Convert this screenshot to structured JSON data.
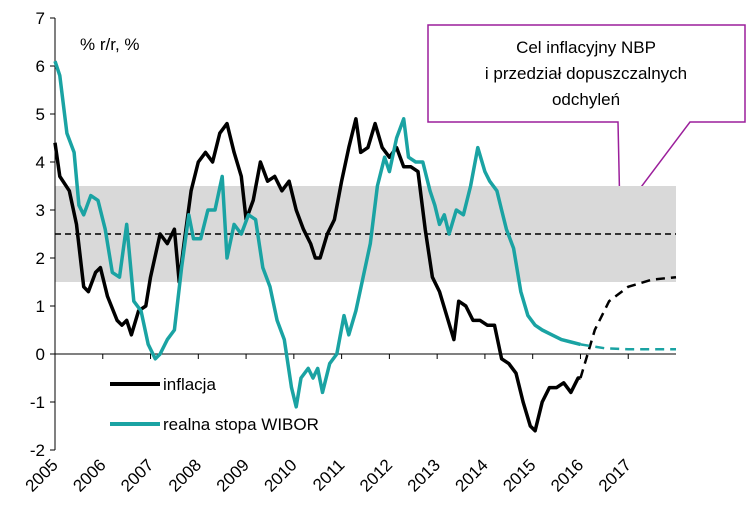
{
  "chart_data": {
    "type": "line",
    "ylabel": "% r/r, %",
    "annotation": [
      "Cel inflacyjny NBP",
      "i przedział dopuszczalnych",
      "odchyleń"
    ],
    "xlim": [
      2005,
      2018
    ],
    "xticks": [
      2005,
      2006,
      2007,
      2008,
      2009,
      2010,
      2011,
      2012,
      2013,
      2014,
      2015,
      2016,
      2017
    ],
    "ylim": [
      -2,
      7
    ],
    "yticks": [
      -2,
      -1,
      0,
      1,
      2,
      3,
      4,
      5,
      6,
      7
    ],
    "target": 2.5,
    "band": [
      1.5,
      3.5
    ],
    "band_color": "#d9d9d9",
    "series": [
      {
        "name": "inflacja",
        "color": "#000000",
        "x": [
          2005.0,
          2005.1,
          2005.3,
          2005.45,
          2005.6,
          2005.7,
          2005.85,
          2005.95,
          2006.1,
          2006.3,
          2006.4,
          2006.5,
          2006.6,
          2006.75,
          2006.9,
          2007.0,
          2007.2,
          2007.35,
          2007.5,
          2007.6,
          2007.7,
          2007.85,
          2008.0,
          2008.15,
          2008.3,
          2008.45,
          2008.6,
          2008.75,
          2008.9,
          2009.0,
          2009.15,
          2009.3,
          2009.45,
          2009.6,
          2009.75,
          2009.9,
          2010.05,
          2010.2,
          2010.35,
          2010.45,
          2010.55,
          2010.7,
          2010.85,
          2011.0,
          2011.15,
          2011.3,
          2011.4,
          2011.55,
          2011.7,
          2011.85,
          2012.0,
          2012.15,
          2012.3,
          2012.45,
          2012.6,
          2012.75,
          2012.9,
          2013.05,
          2013.2,
          2013.35,
          2013.45,
          2013.6,
          2013.75,
          2013.9,
          2014.05,
          2014.2,
          2014.35,
          2014.5,
          2014.65,
          2014.8,
          2014.95,
          2015.05,
          2015.2,
          2015.35,
          2015.5,
          2015.65,
          2015.8,
          2015.95,
          2016.0
        ],
        "values": [
          4.4,
          3.7,
          3.4,
          2.7,
          1.4,
          1.3,
          1.7,
          1.8,
          1.2,
          0.7,
          0.6,
          0.7,
          0.4,
          0.9,
          1.0,
          1.6,
          2.5,
          2.3,
          2.6,
          1.5,
          2.3,
          3.4,
          4.0,
          4.2,
          4.0,
          4.6,
          4.8,
          4.2,
          3.7,
          2.8,
          3.2,
          4.0,
          3.6,
          3.7,
          3.4,
          3.6,
          3.0,
          2.6,
          2.3,
          2.0,
          2.0,
          2.5,
          2.8,
          3.6,
          4.3,
          4.9,
          4.2,
          4.3,
          4.8,
          4.3,
          4.1,
          4.3,
          3.9,
          3.9,
          3.8,
          2.6,
          1.6,
          1.3,
          0.8,
          0.3,
          1.1,
          1.0,
          0.7,
          0.7,
          0.6,
          0.6,
          -0.1,
          -0.2,
          -0.4,
          -1.0,
          -1.5,
          -1.6,
          -1.0,
          -0.7,
          -0.7,
          -0.6,
          -0.8,
          -0.5,
          -0.5
        ],
        "forecast": {
          "x": [
            2016.0,
            2016.3,
            2016.6,
            2017.0,
            2017.5,
            2018.0
          ],
          "values": [
            -0.5,
            0.5,
            1.1,
            1.4,
            1.55,
            1.6
          ]
        }
      },
      {
        "name": "realna stopa WIBOR",
        "color": "#1aa3a3",
        "x": [
          2005.0,
          2005.1,
          2005.25,
          2005.4,
          2005.5,
          2005.6,
          2005.75,
          2005.9,
          2006.05,
          2006.2,
          2006.35,
          2006.5,
          2006.65,
          2006.8,
          2006.95,
          2007.1,
          2007.2,
          2007.35,
          2007.5,
          2007.65,
          2007.8,
          2007.9,
          2008.05,
          2008.2,
          2008.35,
          2008.5,
          2008.6,
          2008.75,
          2008.9,
          2009.05,
          2009.2,
          2009.35,
          2009.5,
          2009.65,
          2009.8,
          2009.95,
          2010.05,
          2010.15,
          2010.3,
          2010.4,
          2010.5,
          2010.6,
          2010.75,
          2010.9,
          2011.05,
          2011.15,
          2011.3,
          2011.45,
          2011.6,
          2011.75,
          2011.9,
          2012.0,
          2012.15,
          2012.3,
          2012.4,
          2012.55,
          2012.7,
          2012.85,
          2012.95,
          2013.05,
          2013.15,
          2013.25,
          2013.4,
          2013.55,
          2013.7,
          2013.85,
          2014.0,
          2014.1,
          2014.25,
          2014.35,
          2014.45,
          2014.6,
          2014.75,
          2014.9,
          2015.05,
          2015.2,
          2015.4,
          2015.6,
          2015.8,
          2016.0
        ],
        "values": [
          6.1,
          5.8,
          4.6,
          4.2,
          3.1,
          2.9,
          3.3,
          3.2,
          2.6,
          1.7,
          1.6,
          2.7,
          1.1,
          0.9,
          0.2,
          -0.1,
          0.0,
          0.3,
          0.5,
          1.8,
          2.9,
          2.4,
          2.4,
          3.0,
          3.0,
          3.7,
          2.0,
          2.7,
          2.5,
          2.9,
          2.8,
          1.8,
          1.4,
          0.7,
          0.3,
          -0.7,
          -1.1,
          -0.5,
          -0.3,
          -0.5,
          -0.3,
          -0.8,
          -0.2,
          0.0,
          0.8,
          0.4,
          0.9,
          1.6,
          2.3,
          3.5,
          4.1,
          3.8,
          4.5,
          4.9,
          4.1,
          4.0,
          4.0,
          3.4,
          3.1,
          2.7,
          2.9,
          2.5,
          3.0,
          2.9,
          3.5,
          4.3,
          3.8,
          3.6,
          3.4,
          3.0,
          2.6,
          2.2,
          1.3,
          0.8,
          0.6,
          0.5,
          0.4,
          0.3,
          0.25,
          0.2
        ],
        "forecast": {
          "x": [
            2016.0,
            2016.5,
            2017.0,
            2017.5,
            2018.0
          ],
          "values": [
            0.2,
            0.12,
            0.1,
            0.1,
            0.1
          ]
        }
      }
    ]
  }
}
